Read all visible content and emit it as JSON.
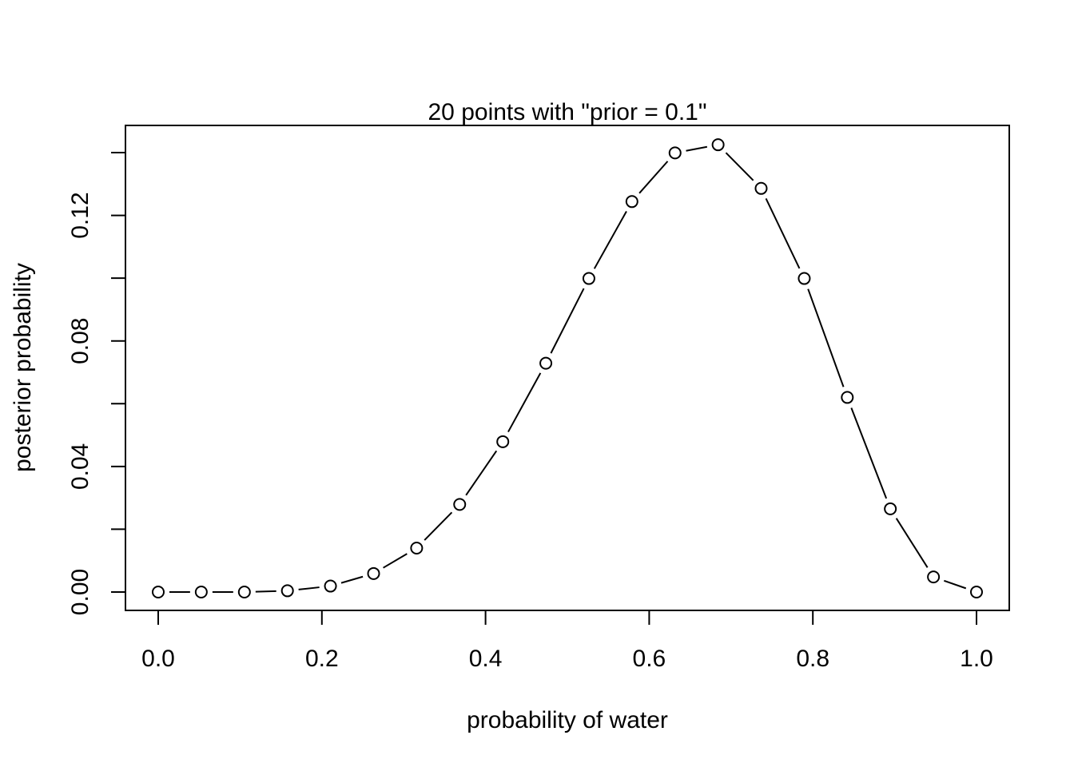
{
  "chart_data": {
    "type": "line",
    "title": "20 points with \"prior = 0.1\"",
    "xlabel": "probability of water",
    "ylabel": "posterior probability",
    "xlim": [
      0.0,
      1.0
    ],
    "ylim": [
      0.0,
      0.14
    ],
    "x_ticks": [
      "0.0",
      "0.2",
      "0.4",
      "0.6",
      "0.8",
      "1.0"
    ],
    "y_ticks": [
      "0.00",
      "0.04",
      "0.08",
      "0.12"
    ],
    "y_tick_marks": [
      0.0,
      0.02,
      0.04,
      0.06,
      0.08,
      0.1,
      0.12,
      0.14
    ],
    "grid": false,
    "line_style": "line with open circle markers",
    "colors": {
      "line": "#000000",
      "marker_stroke": "#000000",
      "marker_fill": "#ffffff",
      "axis": "#000000",
      "background": "#ffffff"
    },
    "series": [
      {
        "x": [
          0.0,
          0.0526,
          0.1053,
          0.1579,
          0.2105,
          0.2632,
          0.3158,
          0.3684,
          0.4211,
          0.4737,
          0.5263,
          0.5789,
          0.6316,
          0.6842,
          0.7368,
          0.7895,
          0.8421,
          0.8947,
          0.9474,
          1.0
        ],
        "y": [
          0.0,
          0.0,
          0.0,
          0.0004,
          0.0019,
          0.0059,
          0.014,
          0.0279,
          0.0479,
          0.0729,
          0.0999,
          0.1244,
          0.1399,
          0.1425,
          0.1286,
          0.0999,
          0.062,
          0.0265,
          0.0048,
          0.0
        ]
      }
    ]
  }
}
